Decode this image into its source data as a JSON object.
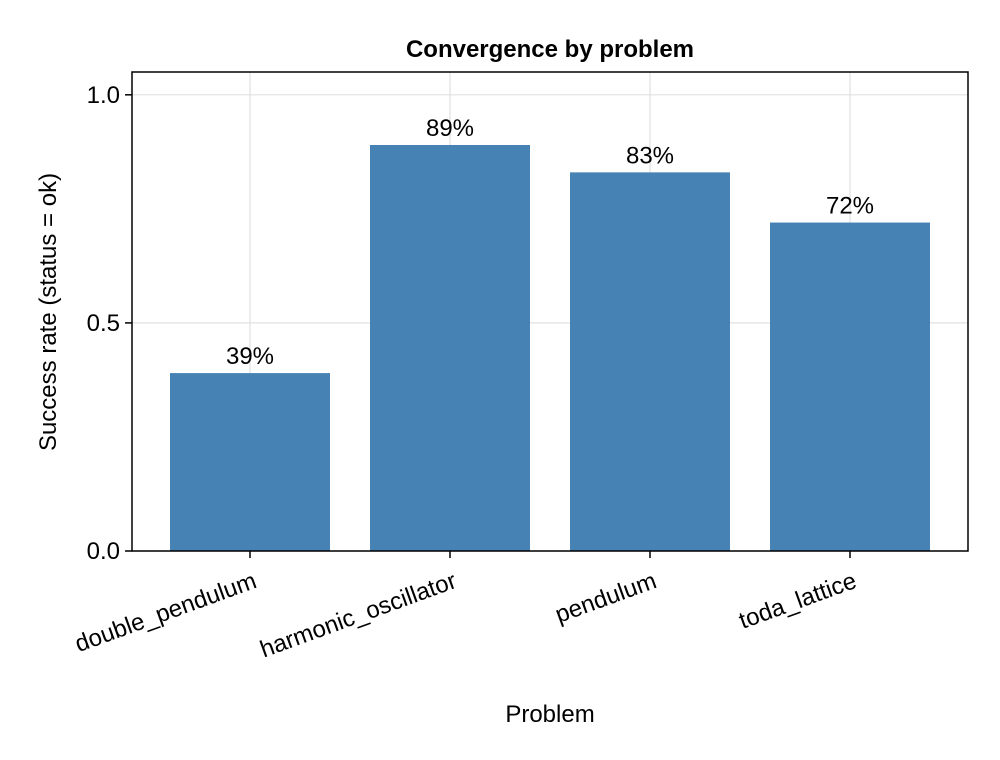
{
  "chart_data": {
    "type": "bar",
    "title": "Convergence by problem",
    "xlabel": "Problem",
    "ylabel": "Success rate (status = ok)",
    "categories": [
      "double_pendulum",
      "harmonic_oscillator",
      "pendulum",
      "toda_lattice"
    ],
    "values": [
      0.39,
      0.89,
      0.83,
      0.72
    ],
    "data_labels": [
      "39%",
      "89%",
      "83%",
      "72%"
    ],
    "yticks": [
      0.0,
      0.5,
      1.0
    ],
    "ytick_labels": [
      "0.0",
      "0.5",
      "1.0"
    ],
    "ylim": [
      0,
      1.05
    ],
    "grid": true,
    "legend": "none",
    "bar_color": "#4682b4"
  }
}
